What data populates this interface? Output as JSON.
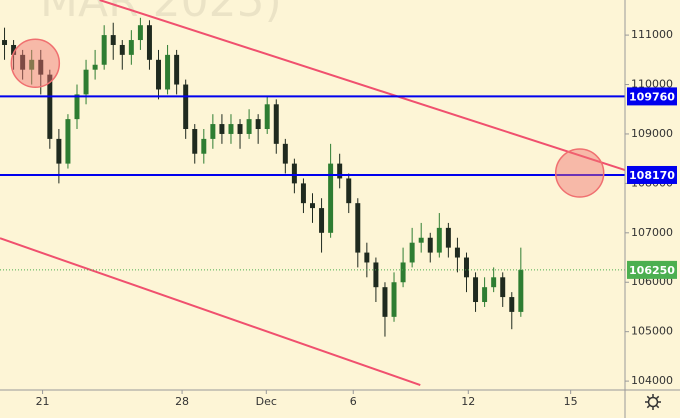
{
  "chart_data": {
    "type": "candlestick",
    "watermark": "MAR 2025)",
    "x": [
      0.5,
      1.5,
      2.5,
      3.5,
      4.5,
      5.5,
      6.5,
      7.5,
      8.5,
      9.5,
      10.5,
      11.5,
      12.5,
      13.5,
      14.5,
      15.5,
      16.5,
      17.5,
      18.5,
      19.5,
      20.5,
      21.5,
      22.5,
      23.5,
      24.5,
      25.5,
      26.5,
      27.5,
      28.5,
      29.5,
      30.5,
      31.5,
      32.5,
      33.5,
      34.5,
      35.5,
      36.5,
      37.5,
      38.5,
      39.5,
      40.5,
      41.5,
      42.5,
      43.5,
      44.5,
      45.5,
      46.5,
      47.5,
      48.5,
      49.5,
      50.5,
      51.5,
      52.5,
      53.5,
      54.5,
      55.5,
      56.5,
      57.5
    ],
    "open": [
      110900,
      110800,
      110600,
      110300,
      110500,
      110200,
      108900,
      108400,
      109300,
      109800,
      110300,
      110400,
      111000,
      110800,
      110600,
      110900,
      111200,
      110500,
      109900,
      110600,
      110000,
      109100,
      108600,
      108900,
      109200,
      109000,
      109200,
      109000,
      109300,
      109100,
      109600,
      108800,
      108400,
      108000,
      107600,
      107500,
      107000,
      108400,
      108100,
      107600,
      106600,
      106400,
      105900,
      105300,
      106000,
      106400,
      106800,
      106900,
      106600,
      107100,
      106700,
      106500,
      106100,
      105600,
      105900,
      106100,
      105700,
      105400
    ],
    "high": [
      111150,
      110900,
      110700,
      110700,
      110700,
      110300,
      109100,
      109400,
      110000,
      110500,
      110700,
      111200,
      111250,
      110900,
      111100,
      111350,
      111300,
      110700,
      110800,
      110700,
      110100,
      109200,
      109100,
      109400,
      109400,
      109400,
      109300,
      109500,
      109400,
      109750,
      109700,
      108900,
      108500,
      108100,
      107800,
      107700,
      108800,
      108600,
      108200,
      107700,
      106800,
      106500,
      106000,
      106200,
      106700,
      107100,
      107200,
      107000,
      107400,
      107200,
      106900,
      106600,
      106200,
      106100,
      106300,
      106200,
      105800,
      106700
    ],
    "low": [
      110500,
      110300,
      110100,
      110000,
      109800,
      108700,
      108000,
      108300,
      109100,
      109600,
      110100,
      110300,
      110500,
      110300,
      110400,
      110700,
      110300,
      109700,
      109800,
      109800,
      108900,
      108400,
      108400,
      108700,
      108800,
      108800,
      108700,
      108900,
      108800,
      109000,
      108600,
      108200,
      107800,
      107400,
      107200,
      106600,
      106900,
      107900,
      107400,
      106300,
      106100,
      105600,
      104900,
      105200,
      105900,
      106300,
      106600,
      106400,
      106500,
      106500,
      106200,
      105800,
      105400,
      105500,
      105800,
      105500,
      105050,
      105300
    ],
    "close": [
      110800,
      110600,
      110300,
      110500,
      110200,
      108900,
      108400,
      109300,
      109800,
      110300,
      110400,
      111000,
      110800,
      110600,
      110900,
      111200,
      110500,
      109900,
      110600,
      110000,
      109100,
      108600,
      108900,
      109200,
      109000,
      109200,
      109000,
      109300,
      109100,
      109600,
      108800,
      108400,
      108000,
      107600,
      107500,
      107000,
      108400,
      108100,
      107600,
      106600,
      106400,
      105900,
      105300,
      106000,
      106400,
      106800,
      106900,
      106600,
      107100,
      106700,
      106500,
      106100,
      105600,
      105900,
      106100,
      105700,
      105400,
      106250
    ],
    "up_color": "#2e7d32",
    "down_color": "#1f2a1f",
    "xlim": [
      0,
      69
    ],
    "xticks": [
      {
        "value": 4.7,
        "label": "21"
      },
      {
        "value": 20.1,
        "label": "28"
      },
      {
        "value": 29.4,
        "label": "Dec"
      },
      {
        "value": 39.0,
        "label": "6"
      },
      {
        "value": 51.7,
        "label": "12"
      },
      {
        "value": 63.0,
        "label": "15"
      }
    ],
    "ylim": [
      103820,
      111710
    ],
    "yticks": [
      104000,
      105000,
      106000,
      107000,
      108000,
      109000,
      110000,
      111000
    ],
    "hlines": [
      {
        "value": 109760,
        "color": "#0000ee"
      },
      {
        "value": 108170,
        "color": "#0000ee"
      }
    ],
    "last_price": {
      "value": 106250,
      "color": "#4caf50"
    },
    "trendlines": [
      {
        "x": [
          11.0,
          69
        ],
        "y": [
          111710,
          108270
        ],
        "color": "#f0506e"
      },
      {
        "x": [
          0,
          46.4
        ],
        "y": [
          106890,
          103920
        ],
        "color": "#f0506e"
      }
    ],
    "circles": [
      {
        "x": 3.9,
        "y": 110430,
        "color": "#f07070"
      },
      {
        "x": 64.0,
        "y": 108210,
        "color": "#f07070"
      }
    ]
  }
}
